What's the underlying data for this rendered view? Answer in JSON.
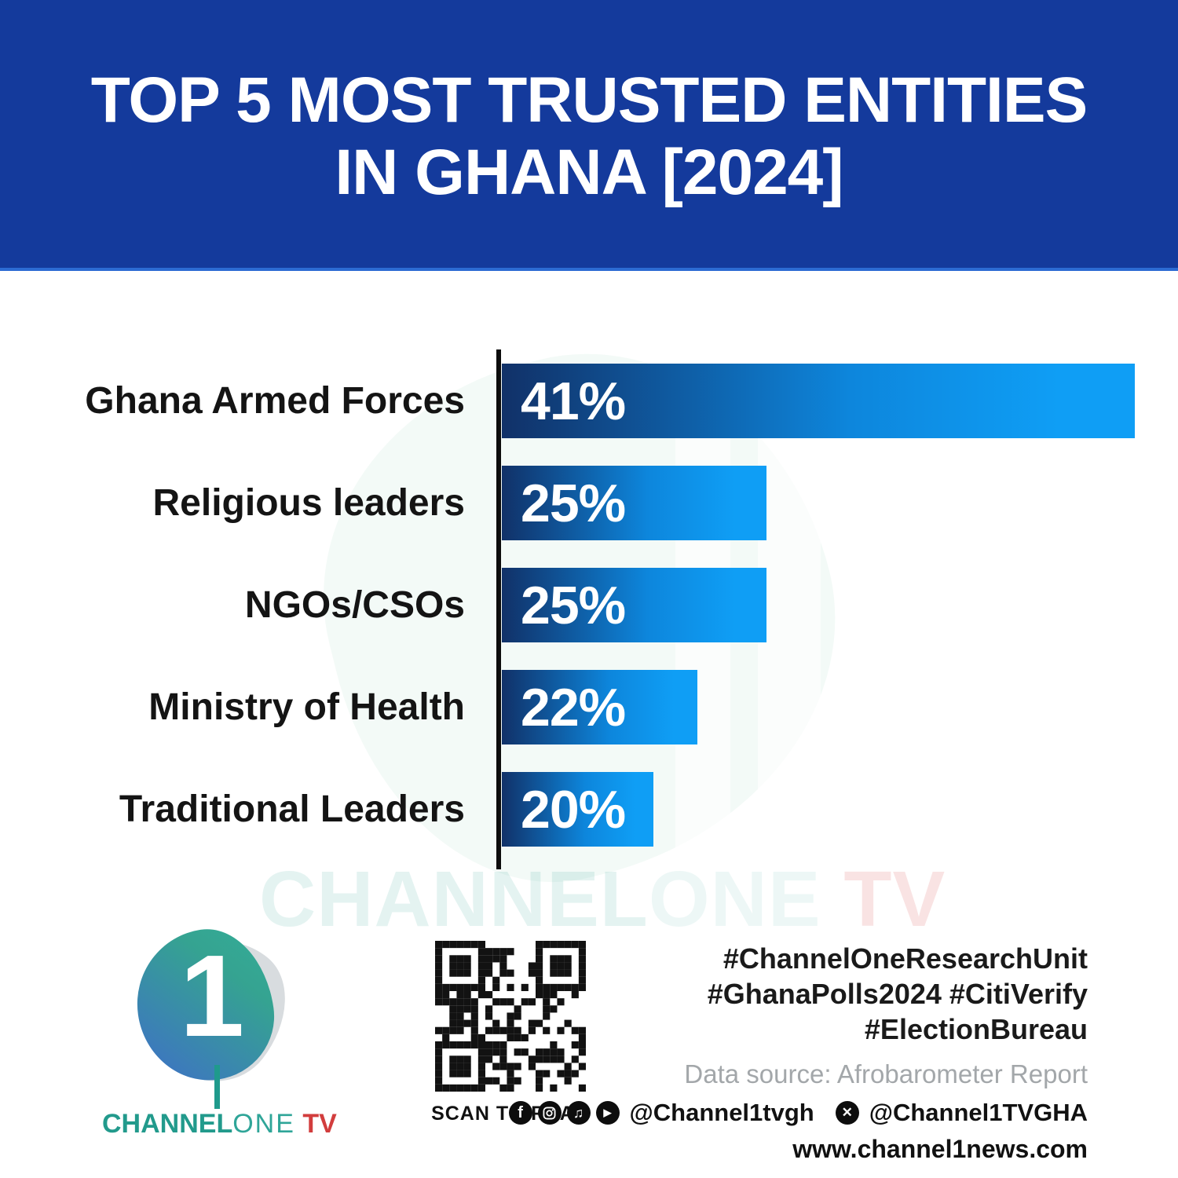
{
  "header": {
    "title_line1": "TOP 5 MOST TRUSTED ENTITIES",
    "title_line2": "IN GHANA [2024]"
  },
  "chart_data": {
    "type": "bar",
    "orientation": "horizontal",
    "title": "Top 5 most trusted entities in Ghana [2024]",
    "categories": [
      "Ghana Armed Forces",
      "Religious leaders",
      "NGOs/CSOs",
      "Ministry of Health",
      "Traditional Leaders"
    ],
    "values": [
      41,
      25,
      25,
      22,
      20
    ],
    "value_labels": [
      "41%",
      "25%",
      "25%",
      "22%",
      "20%"
    ],
    "unit": "%",
    "legend": "none",
    "grid": "off",
    "layout": {
      "bar_fractions_of_longest": [
        1.0,
        0.418,
        0.418,
        0.309,
        0.239
      ],
      "bar_color_gradient": [
        "#113168",
        "#0f9ef5"
      ],
      "axis_color": "#0c0c0c",
      "label_color": "#141414",
      "value_label_color": "#ffffff"
    }
  },
  "watermark": {
    "channel": "CHANNEL",
    "one": "ONE",
    "tv": "TV"
  },
  "footer": {
    "logo": {
      "digit": "1",
      "brand_channel": "CHANNEL",
      "brand_one": "ONE",
      "brand_tv": " TV",
      "teal": "#229a8c",
      "red": "#d23d3d"
    },
    "qr_caption": "SCAN TO READ",
    "hashtags": [
      "#ChannelOneResearchUnit",
      "#GhanaPolls2024 #CitiVerify",
      "#ElectionBureau"
    ],
    "data_source": "Data source: Afrobarometer Report",
    "social": {
      "icons": [
        "facebook-icon",
        "instagram-icon",
        "tiktok-icon",
        "youtube-icon"
      ],
      "handle1": "@Channel1tvgh",
      "x_icon": "x-icon",
      "handle2": "@Channel1TVGHA"
    },
    "website": "www.channel1news.com"
  },
  "colors": {
    "banner_blue": "#143a9c",
    "banner_edge": "#2c6bd3",
    "bar_dark": "#113168",
    "bar_bright": "#0f9ef5",
    "logo_teal": "#229a8c",
    "logo_red": "#d23d3d",
    "muted_gray": "#a3a7aa"
  }
}
